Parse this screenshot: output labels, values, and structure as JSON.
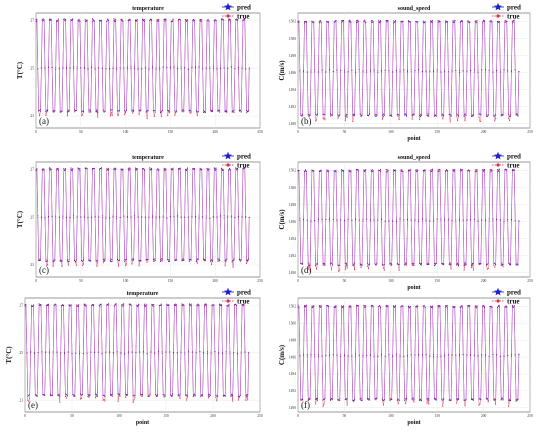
{
  "chart_data": [
    {
      "type": "line",
      "panel_label": "(a)",
      "title": "temperature",
      "xlabel": "",
      "ylabel": "T(°C)",
      "xlim": [
        0,
        250
      ],
      "ylim": [
        22.5,
        27.3
      ],
      "xticks": [
        0,
        50,
        100,
        150,
        200,
        250
      ],
      "yticks": [
        23,
        25,
        27
      ],
      "grid": true,
      "legend": {
        "position": "top-right",
        "entries": [
          "pred",
          "true"
        ]
      },
      "cycle_points": 8,
      "levels": [
        23.2,
        25.0,
        27.0
      ],
      "series": [
        {
          "name": "pred",
          "color": "#1f1fd1",
          "marker": "star"
        },
        {
          "name": "true",
          "color": "#e0284a",
          "marker": "circle"
        }
      ]
    },
    {
      "type": "line",
      "panel_label": "(b)",
      "title": "sound_speed",
      "xlabel": "point",
      "ylabel": "C(m/s)",
      "xlim": [
        0,
        250
      ],
      "ylim": [
        1489.5,
        1503
      ],
      "xticks": [
        0,
        50,
        100,
        150,
        200,
        250
      ],
      "yticks": [
        1490,
        1492,
        1494,
        1496,
        1498,
        1500,
        1502
      ],
      "grid": true,
      "legend": {
        "position": "top-right",
        "entries": [
          "pred",
          "true"
        ]
      },
      "cycle_points": 8,
      "levels": [
        1491.0,
        1496.2,
        1502.0
      ],
      "series": [
        {
          "name": "pred",
          "color": "#1f1fd1",
          "marker": "star"
        },
        {
          "name": "true",
          "color": "#e0284a",
          "marker": "circle"
        }
      ]
    },
    {
      "type": "line",
      "panel_label": "(c)",
      "title": "temperature",
      "xlabel": "",
      "ylabel": "T(°C)",
      "xlim": [
        0,
        250
      ],
      "ylim": [
        22.5,
        27.3
      ],
      "xticks": [
        0,
        50,
        100,
        150,
        200,
        250
      ],
      "yticks": [
        23,
        25,
        27
      ],
      "grid": true,
      "legend": {
        "position": "top-right",
        "entries": [
          "pred",
          "true"
        ]
      },
      "cycle_points": 8,
      "levels": [
        23.2,
        25.0,
        27.0
      ],
      "series": [
        {
          "name": "pred",
          "color": "#1f1fd1",
          "marker": "star"
        },
        {
          "name": "true",
          "color": "#e0284a",
          "marker": "circle"
        }
      ]
    },
    {
      "type": "line",
      "panel_label": "(d)",
      "title": "sound_speed",
      "xlabel": "point",
      "ylabel": "C(m/s)",
      "xlim": [
        0,
        250
      ],
      "ylim": [
        1489.5,
        1503
      ],
      "xticks": [
        0,
        50,
        100,
        150,
        200,
        250
      ],
      "yticks": [
        1490,
        1492,
        1494,
        1496,
        1498,
        1500,
        1502
      ],
      "grid": true,
      "legend": {
        "position": "top-right",
        "entries": [
          "pred",
          "true"
        ]
      },
      "cycle_points": 8,
      "levels": [
        1491.0,
        1496.2,
        1502.0
      ],
      "series": [
        {
          "name": "pred",
          "color": "#1f1fd1",
          "marker": "star"
        },
        {
          "name": "true",
          "color": "#e0284a",
          "marker": "circle"
        }
      ]
    },
    {
      "type": "line",
      "panel_label": "(e)",
      "title": "temperature",
      "xlabel": "point",
      "ylabel": "T(°C)",
      "xlim": [
        0,
        250
      ],
      "ylim": [
        22.5,
        27.3
      ],
      "xticks": [
        0,
        50,
        100,
        150,
        200,
        250
      ],
      "yticks": [
        23,
        25,
        27
      ],
      "grid": true,
      "legend": {
        "position": "top-right",
        "entries": [
          "pred",
          "true"
        ]
      },
      "cycle_points": 8,
      "levels": [
        23.2,
        25.0,
        27.0
      ],
      "series": [
        {
          "name": "pred",
          "color": "#1f1fd1",
          "marker": "star"
        },
        {
          "name": "true",
          "color": "#e0284a",
          "marker": "circle"
        }
      ]
    },
    {
      "type": "line",
      "panel_label": "(f)",
      "title": "",
      "xlabel": "point",
      "ylabel": "C(m/s)",
      "xlim": [
        0,
        250
      ],
      "ylim": [
        1489.5,
        1503
      ],
      "xticks": [
        0,
        50,
        100,
        150,
        200,
        250
      ],
      "yticks": [
        1490,
        1492,
        1494,
        1496,
        1498,
        1500,
        1502
      ],
      "grid": true,
      "legend": {
        "position": "top-right",
        "entries": [
          "pred",
          "true"
        ]
      },
      "cycle_points": 8,
      "levels": [
        1491.0,
        1496.2,
        1502.0
      ],
      "series": [
        {
          "name": "pred",
          "color": "#1f1fd1",
          "marker": "star"
        },
        {
          "name": "true",
          "color": "#e0284a",
          "marker": "circle"
        }
      ]
    }
  ]
}
